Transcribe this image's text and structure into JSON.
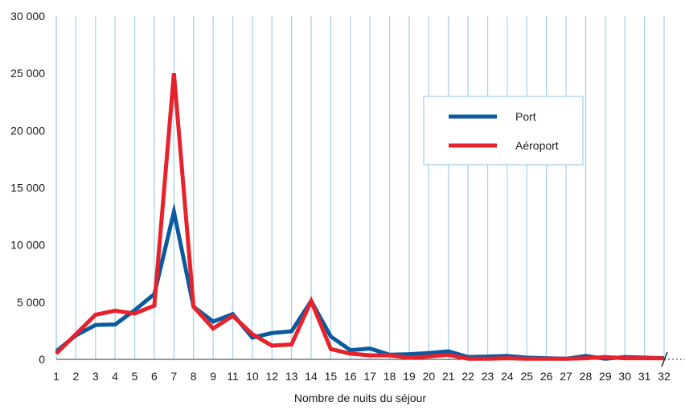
{
  "chart_data": {
    "type": "line",
    "xlabel": "Nombre de nuits du séjour",
    "ylabel": "",
    "x": [
      "1",
      "2",
      "3",
      "4",
      "5",
      "6",
      "7",
      "8",
      "9",
      "11",
      "10",
      "12",
      "13",
      "14",
      "15",
      "16",
      "17",
      "18",
      "19",
      "20",
      "21",
      "22",
      "23",
      "24",
      "25",
      "26",
      "27",
      "28",
      "29",
      "30",
      "31",
      "32"
    ],
    "yticks": [
      "0",
      "5 000",
      "10 000",
      "15 000",
      "20 000",
      "25 000",
      "30 000"
    ],
    "ylim": [
      0,
      30000
    ],
    "grid": "vertical",
    "legend_position": "top-right",
    "series": [
      {
        "name": "Port",
        "color": "#0b5aa0",
        "values": [
          700,
          2100,
          3000,
          3050,
          4300,
          5700,
          12900,
          4600,
          3300,
          3950,
          1900,
          2300,
          2450,
          5100,
          2000,
          800,
          950,
          400,
          450,
          550,
          700,
          200,
          250,
          300,
          150,
          100,
          50,
          300,
          50,
          200,
          150,
          100
        ]
      },
      {
        "name": "Aéroport",
        "color": "#e8222a",
        "values": [
          500,
          2200,
          3900,
          4250,
          4000,
          4700,
          25000,
          4600,
          2700,
          3800,
          2200,
          1200,
          1300,
          5100,
          900,
          500,
          350,
          350,
          150,
          250,
          400,
          50,
          50,
          100,
          50,
          50,
          50,
          100,
          200,
          100,
          100,
          100
        ]
      }
    ]
  }
}
